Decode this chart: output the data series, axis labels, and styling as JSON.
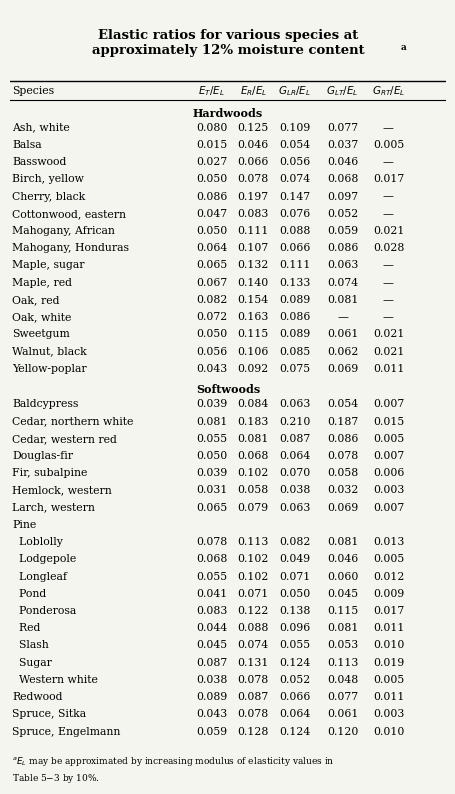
{
  "title": "Elastic ratios for various species at\napproximately 12% moisture content",
  "title_superscript": "a",
  "columns": [
    "Species",
    "E_T/E_L",
    "E_R/E_L",
    "G_LR/E_L",
    "G_LT/E_L",
    "G_RT/E_L"
  ],
  "col_headers_italic": [
    "E_T/E_L",
    "E_R/E_L",
    "G_LR/E_L",
    "G_LT/E_L",
    "G_RT/E_L"
  ],
  "hardwoods_label": "Hardwoods",
  "softwoods_label": "Softwoods",
  "hardwoods": [
    [
      "Ash, white",
      "0.080",
      "0.125",
      "0.109",
      "0.077",
      "—"
    ],
    [
      "Balsa",
      "0.015",
      "0.046",
      "0.054",
      "0.037",
      "0.005"
    ],
    [
      "Basswood",
      "0.027",
      "0.066",
      "0.056",
      "0.046",
      "—"
    ],
    [
      "Birch, yellow",
      "0.050",
      "0.078",
      "0.074",
      "0.068",
      "0.017"
    ],
    [
      "Cherry, black",
      "0.086",
      "0.197",
      "0.147",
      "0.097",
      "—"
    ],
    [
      "Cottonwood, eastern",
      "0.047",
      "0.083",
      "0.076",
      "0.052",
      "—"
    ],
    [
      "Mahogany, African",
      "0.050",
      "0.111",
      "0.088",
      "0.059",
      "0.021"
    ],
    [
      "Mahogany, Honduras",
      "0.064",
      "0.107",
      "0.066",
      "0.086",
      "0.028"
    ],
    [
      "Maple, sugar",
      "0.065",
      "0.132",
      "0.111",
      "0.063",
      "—"
    ],
    [
      "Maple, red",
      "0.067",
      "0.140",
      "0.133",
      "0.074",
      "—"
    ],
    [
      "Oak, red",
      "0.082",
      "0.154",
      "0.089",
      "0.081",
      "—"
    ],
    [
      "Oak, white",
      "0.072",
      "0.163",
      "0.086",
      "—",
      "—"
    ],
    [
      "Sweetgum",
      "0.050",
      "0.115",
      "0.089",
      "0.061",
      "0.021"
    ],
    [
      "Walnut, black",
      "0.056",
      "0.106",
      "0.085",
      "0.062",
      "0.021"
    ],
    [
      "Yellow-poplar",
      "0.043",
      "0.092",
      "0.075",
      "0.069",
      "0.011"
    ]
  ],
  "softwoods": [
    [
      "Baldcypress",
      "0.039",
      "0.084",
      "0.063",
      "0.054",
      "0.007"
    ],
    [
      "Cedar, northern white",
      "0.081",
      "0.183",
      "0.210",
      "0.187",
      "0.015"
    ],
    [
      "Cedar, western red",
      "0.055",
      "0.081",
      "0.087",
      "0.086",
      "0.005"
    ],
    [
      "Douglas-fir",
      "0.050",
      "0.068",
      "0.064",
      "0.078",
      "0.007"
    ],
    [
      "Fir, subalpine",
      "0.039",
      "0.102",
      "0.070",
      "0.058",
      "0.006"
    ],
    [
      "Hemlock, western",
      "0.031",
      "0.058",
      "0.038",
      "0.032",
      "0.003"
    ],
    [
      "Larch, western",
      "0.065",
      "0.079",
      "0.063",
      "0.069",
      "0.007"
    ],
    [
      "Pine",
      "",
      "",
      "",
      "",
      ""
    ],
    [
      "  Loblolly",
      "0.078",
      "0.113",
      "0.082",
      "0.081",
      "0.013"
    ],
    [
      "  Lodgepole",
      "0.068",
      "0.102",
      "0.049",
      "0.046",
      "0.005"
    ],
    [
      "  Longleaf",
      "0.055",
      "0.102",
      "0.071",
      "0.060",
      "0.012"
    ],
    [
      "  Pond",
      "0.041",
      "0.071",
      "0.050",
      "0.045",
      "0.009"
    ],
    [
      "  Ponderosa",
      "0.083",
      "0.122",
      "0.138",
      "0.115",
      "0.017"
    ],
    [
      "  Red",
      "0.044",
      "0.088",
      "0.096",
      "0.081",
      "0.011"
    ],
    [
      "  Slash",
      "0.045",
      "0.074",
      "0.055",
      "0.053",
      "0.010"
    ],
    [
      "  Sugar",
      "0.087",
      "0.131",
      "0.124",
      "0.113",
      "0.019"
    ],
    [
      "  Western white",
      "0.038",
      "0.078",
      "0.052",
      "0.048",
      "0.005"
    ],
    [
      "Redwood",
      "0.089",
      "0.087",
      "0.066",
      "0.077",
      "0.011"
    ],
    [
      "Spruce, Sitka",
      "0.043",
      "0.078",
      "0.064",
      "0.061",
      "0.003"
    ],
    [
      "Spruce, Engelmann",
      "0.059",
      "0.128",
      "0.124",
      "0.120",
      "0.010"
    ]
  ],
  "footnote": "$^aE_L$ may be approximated by increasing modulus of elasticity values in\nTable 5–3 by 10%.",
  "bg_color": "#f5f5f0",
  "text_color": "#000000"
}
